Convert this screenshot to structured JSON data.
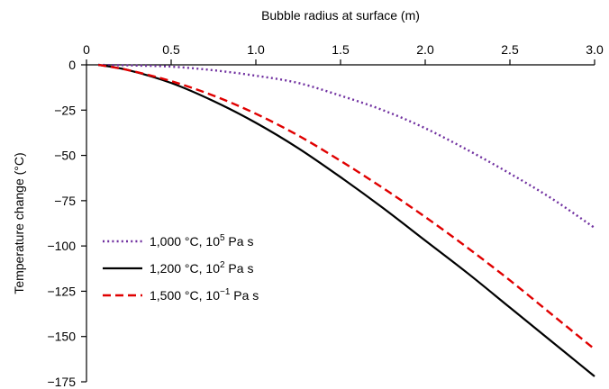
{
  "chart_data": {
    "type": "line",
    "title": "",
    "xlabel": "Bubble radius at surface (m)",
    "ylabel": "Temperature change (°C)",
    "x_axis_position": "top",
    "xlim": [
      0,
      3.0
    ],
    "ylim": [
      -175,
      0
    ],
    "xticks": [
      0,
      0.5,
      1.0,
      1.5,
      2.0,
      2.5,
      3.0
    ],
    "xtick_labels": [
      "0",
      "0.5",
      "1.0",
      "1.5",
      "2.0",
      "2.5",
      "3.0"
    ],
    "yticks": [
      0,
      -25,
      -50,
      -75,
      -100,
      -125,
      -150,
      -175
    ],
    "ytick_labels": [
      "0",
      "−25",
      "−50",
      "−75",
      "−100",
      "−125",
      "−150",
      "−175"
    ],
    "grid": false,
    "legend_position": "lower-left",
    "x": [
      0.07,
      0.25,
      0.5,
      0.75,
      1.0,
      1.25,
      1.5,
      1.75,
      2.0,
      2.25,
      2.5,
      2.75,
      3.0
    ],
    "series": [
      {
        "legend_temp": "1,000 °C, 10",
        "legend_exp": "5",
        "legend_unit": " Pa s",
        "color": "#7030a0",
        "dash": "dotted",
        "values": [
          0,
          -0.3,
          -1,
          -3,
          -6,
          -10,
          -17,
          -25,
          -35,
          -47,
          -60,
          -74,
          -90
        ]
      },
      {
        "legend_temp": "1,200 °C, 10",
        "legend_exp": "2",
        "legend_unit": " Pa s",
        "color": "#000000",
        "dash": "solid",
        "values": [
          0,
          -3,
          -10,
          -20,
          -32,
          -46,
          -62,
          -79,
          -97,
          -115,
          -134,
          -153,
          -172
        ]
      },
      {
        "legend_temp": "1,500 °C, 10",
        "legend_exp": "−1",
        "legend_unit": " Pa s",
        "color": "#e00000",
        "dash": "dashed",
        "values": [
          0,
          -3,
          -9,
          -17,
          -27,
          -39,
          -53,
          -68,
          -84,
          -101,
          -119,
          -138,
          -157
        ]
      }
    ]
  }
}
